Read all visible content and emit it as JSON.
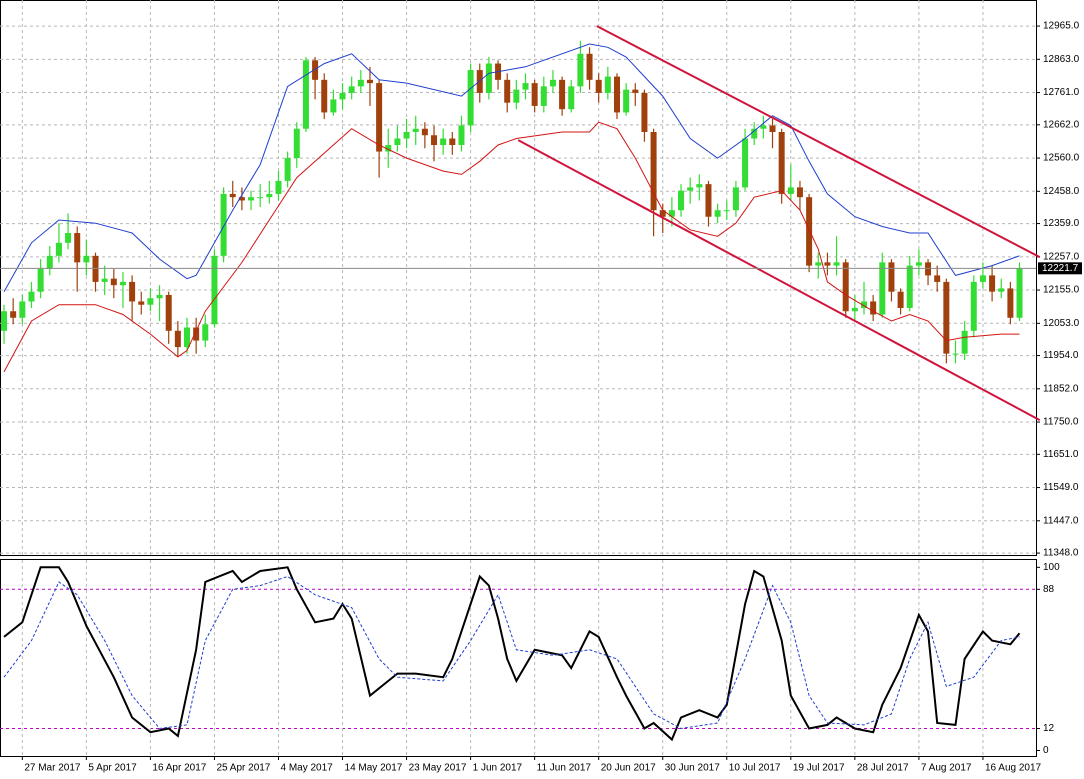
{
  "chart_data": [
    {
      "type": "candlestick",
      "xlim": [
        -0.44,
        112.8
      ],
      "ylim": [
        11339,
        13045
      ],
      "yticks": [
        {
          "value": 12965,
          "label": "12965.0"
        },
        {
          "value": 12863,
          "label": "12863.0"
        },
        {
          "value": 12761,
          "label": "12761.0"
        },
        {
          "value": 12662,
          "label": "12662.0"
        },
        {
          "value": 12560,
          "label": "12560.0"
        },
        {
          "value": 12458,
          "label": "12458.0"
        },
        {
          "value": 12359,
          "label": "12359.0"
        },
        {
          "value": 12257,
          "label": "12257.0"
        },
        {
          "value": 12155,
          "label": "12155.0"
        },
        {
          "value": 12053,
          "label": "12053.0"
        },
        {
          "value": 11954,
          "label": "11954.0"
        },
        {
          "value": 11852,
          "label": "11852.0"
        },
        {
          "value": 11750,
          "label": "11750.0"
        },
        {
          "value": 11651,
          "label": "11651.0"
        },
        {
          "value": 11549,
          "label": "11549.0"
        },
        {
          "value": 11447,
          "label": "11447.0"
        },
        {
          "value": 11348,
          "label": "11348.0"
        }
      ],
      "grid": true,
      "bull_color": "#33dd33",
      "bear_color": "#a0410d",
      "last_price": 12221.7,
      "open": [
        12030,
        12090,
        12070,
        12120,
        12150,
        12220,
        12260,
        12300,
        12330,
        12240,
        12260,
        12180,
        12190,
        12170,
        12180,
        12120,
        12110,
        12130,
        12140,
        12030,
        11980,
        12040,
        12000,
        12050,
        12260,
        12450,
        12440,
        12430,
        12440,
        12440,
        12450,
        12490,
        12560,
        12650,
        12860,
        12800,
        12700,
        12740,
        12760,
        12780,
        12800,
        12790,
        12580,
        12600,
        12620,
        12640,
        12650,
        12630,
        12600,
        12620,
        12600,
        12660,
        12830,
        12760,
        12850,
        12800,
        12730,
        12770,
        12790,
        12720,
        12780,
        12800,
        12710,
        12780,
        12880,
        12800,
        12760,
        12810,
        12700,
        12770,
        12760,
        12640,
        12400,
        12380,
        12400,
        12460,
        12470,
        12480,
        12380,
        12400,
        12400,
        12470,
        12620,
        12650,
        12660,
        12640,
        12450,
        12470,
        12440,
        12230,
        12240,
        12230,
        12240,
        12090,
        12100,
        12120,
        12080,
        12240,
        12150,
        12100,
        12230,
        12240,
        12200,
        12180,
        11960,
        11960,
        12030,
        12180,
        12200,
        12150,
        12160,
        12070
      ],
      "high": [
        12110,
        12130,
        12140,
        12180,
        12250,
        12290,
        12360,
        12390,
        12350,
        12310,
        12270,
        12230,
        12220,
        12210,
        12200,
        12150,
        12160,
        12170,
        12150,
        12060,
        12070,
        12070,
        12080,
        12280,
        12470,
        12490,
        12470,
        12460,
        12480,
        12490,
        12520,
        12580,
        12670,
        12870,
        12870,
        12820,
        12770,
        12790,
        12810,
        12830,
        12840,
        12800,
        12650,
        12660,
        12680,
        12690,
        12670,
        12660,
        12650,
        12640,
        12690,
        12850,
        12850,
        12870,
        12860,
        12820,
        12800,
        12820,
        12800,
        12810,
        12830,
        12810,
        12800,
        12920,
        12900,
        12820,
        12840,
        12820,
        12790,
        12790,
        12770,
        12650,
        12420,
        12440,
        12480,
        12500,
        12510,
        12490,
        12420,
        12430,
        12490,
        12650,
        12670,
        12690,
        12680,
        12650,
        12540,
        12490,
        12450,
        12270,
        12270,
        12320,
        12250,
        12140,
        12180,
        12140,
        12270,
        12250,
        12160,
        12260,
        12280,
        12250,
        12230,
        12190,
        12000,
        12060,
        12200,
        12240,
        12230,
        12190,
        12180,
        12240
      ],
      "low": [
        11990,
        12050,
        12050,
        12100,
        12130,
        12200,
        12240,
        12280,
        12150,
        12200,
        12150,
        12140,
        12130,
        12100,
        12060,
        12080,
        12090,
        12060,
        11990,
        11950,
        11960,
        11960,
        11980,
        12040,
        12240,
        12410,
        12400,
        12400,
        12410,
        12420,
        12430,
        12470,
        12530,
        12640,
        12740,
        12680,
        12690,
        12710,
        12740,
        12760,
        12720,
        12500,
        12530,
        12580,
        12590,
        12600,
        12590,
        12550,
        12570,
        12570,
        12580,
        12640,
        12730,
        12740,
        12770,
        12700,
        12710,
        12740,
        12700,
        12700,
        12760,
        12690,
        12700,
        12760,
        12770,
        12730,
        12740,
        12680,
        12690,
        12720,
        12610,
        12320,
        12330,
        12350,
        12380,
        12420,
        12430,
        12350,
        12360,
        12370,
        12380,
        12460,
        12600,
        12620,
        12590,
        12420,
        12430,
        12400,
        12210,
        12190,
        12200,
        12200,
        12070,
        12060,
        12080,
        12060,
        12070,
        12120,
        12080,
        12090,
        12200,
        12170,
        12150,
        11930,
        11930,
        11940,
        12010,
        12160,
        12120,
        12130,
        12050,
        12060
      ],
      "close": [
        12090,
        12070,
        12120,
        12150,
        12220,
        12260,
        12300,
        12330,
        12240,
        12260,
        12180,
        12190,
        12170,
        12180,
        12120,
        12110,
        12130,
        12140,
        12030,
        11980,
        12040,
        12000,
        12050,
        12260,
        12450,
        12440,
        12430,
        12440,
        12440,
        12450,
        12490,
        12560,
        12650,
        12860,
        12800,
        12700,
        12740,
        12760,
        12780,
        12800,
        12790,
        12580,
        12600,
        12620,
        12640,
        12650,
        12630,
        12600,
        12620,
        12600,
        12660,
        12830,
        12760,
        12850,
        12800,
        12730,
        12770,
        12790,
        12720,
        12780,
        12800,
        12710,
        12780,
        12880,
        12800,
        12760,
        12810,
        12700,
        12770,
        12760,
        12640,
        12400,
        12380,
        12400,
        12460,
        12470,
        12480,
        12380,
        12400,
        12400,
        12470,
        12620,
        12650,
        12660,
        12640,
        12450,
        12470,
        12440,
        12230,
        12240,
        12230,
        12240,
        12090,
        12100,
        12120,
        12080,
        12240,
        12150,
        12100,
        12230,
        12240,
        12200,
        12180,
        11960,
        11960,
        12030,
        12180,
        12200,
        12150,
        12160,
        12070,
        12221.7
      ],
      "bands": [
        {
          "color": "#1f3fcf",
          "x": [
            0,
            3,
            6,
            10,
            14,
            17,
            20,
            21,
            25,
            28,
            31,
            35,
            38,
            41,
            44,
            50,
            53,
            57,
            64,
            66,
            68,
            72,
            75,
            78,
            81,
            84,
            86,
            88,
            90,
            93,
            96,
            99,
            101,
            104,
            108,
            111
          ],
          "values": [
            12150,
            12300,
            12370,
            12360,
            12330,
            12250,
            12190,
            12200,
            12400,
            12540,
            12780,
            12850,
            12880,
            12800,
            12790,
            12750,
            12820,
            12840,
            12910,
            12900,
            12870,
            12750,
            12620,
            12560,
            12620,
            12690,
            12660,
            12550,
            12450,
            12380,
            12350,
            12330,
            12330,
            12200,
            12230,
            12260
          ]
        },
        {
          "color": "#d21414",
          "x": [
            0,
            3,
            6,
            10,
            13,
            16,
            19,
            20,
            22,
            26,
            29,
            32,
            36,
            38,
            41,
            44,
            48,
            50,
            52,
            54,
            56,
            61,
            64,
            65,
            67,
            69,
            72,
            75,
            78,
            80,
            82,
            85,
            87,
            89,
            90,
            92,
            95,
            97,
            99,
            101,
            103,
            105,
            109,
            111
          ],
          "values": [
            11904,
            12060,
            12110,
            12110,
            12080,
            12020,
            11950,
            11970,
            12090,
            12240,
            12370,
            12500,
            12600,
            12650,
            12600,
            12560,
            12520,
            12510,
            12550,
            12600,
            12620,
            12640,
            12640,
            12670,
            12650,
            12560,
            12400,
            12340,
            12320,
            12360,
            12440,
            12460,
            12400,
            12280,
            12180,
            12140,
            12090,
            12060,
            12080,
            12060,
            12000,
            12010,
            12020,
            12020
          ]
        }
      ],
      "trendlines": [
        {
          "color": "#d0143c",
          "x": [
            64.8,
            113.2
          ],
          "values": [
            12965,
            12256
          ]
        },
        {
          "color": "#d0143c",
          "x": [
            56.2,
            113.2
          ],
          "values": [
            12615,
            11756
          ]
        }
      ]
    },
    {
      "type": "oscillator",
      "xlim": [
        -0.44,
        112.8
      ],
      "ylim": [
        -3,
        104
      ],
      "yticks": [
        100,
        88,
        12,
        0
      ],
      "levels": [
        88,
        12
      ],
      "level_color": "#c000c0",
      "xticks": [
        {
          "value": 2,
          "label": "27 Mar 2017"
        },
        {
          "value": 9,
          "label": "5 Apr 2017"
        },
        {
          "value": 16,
          "label": "16 Apr 2017"
        },
        {
          "value": 23,
          "label": "25 Apr 2017"
        },
        {
          "value": 30,
          "label": "4 May 2017"
        },
        {
          "value": 37,
          "label": "14 May 2017"
        },
        {
          "value": 44,
          "label": "23 May 2017"
        },
        {
          "value": 51,
          "label": "1 Jun 2017"
        },
        {
          "value": 58,
          "label": "11 Jun 2017"
        },
        {
          "value": 65,
          "label": "20 Jun 2017"
        },
        {
          "value": 72,
          "label": "30 Jun 2017"
        },
        {
          "value": 79,
          "label": "10 Jul 2017"
        },
        {
          "value": 86,
          "label": "19 Jul 2017"
        },
        {
          "value": 93,
          "label": "28 Jul 2017"
        },
        {
          "value": 100,
          "label": "7 Aug 2017"
        },
        {
          "value": 107,
          "label": "16 Aug 2017"
        }
      ],
      "series": [
        {
          "color": "#000000",
          "dash": false,
          "x": [
            0,
            2,
            4,
            6,
            7,
            9,
            12,
            14,
            16,
            18,
            19,
            21,
            22,
            25,
            26,
            28,
            31,
            32,
            34,
            36,
            37,
            38,
            40,
            42,
            43,
            45,
            48,
            49,
            51,
            52,
            53,
            54,
            55,
            56,
            58,
            61,
            62,
            64,
            65,
            67,
            68,
            70,
            71,
            73,
            74,
            76,
            78,
            79,
            81,
            82,
            83,
            85,
            86,
            88,
            90,
            91,
            93,
            95,
            96,
            98,
            100,
            101,
            102,
            104,
            105,
            107,
            108,
            110,
            111
          ],
          "values": [
            62,
            70,
            100,
            100,
            92,
            68,
            40,
            18,
            10,
            12,
            8,
            55,
            92,
            98,
            92,
            98,
            100,
            88,
            70,
            72,
            80,
            72,
            30,
            38,
            42,
            42,
            40,
            50,
            80,
            95,
            90,
            72,
            50,
            38,
            55,
            52,
            45,
            65,
            62,
            40,
            30,
            12,
            15,
            6,
            18,
            22,
            18,
            25,
            80,
            98,
            95,
            60,
            30,
            12,
            14,
            18,
            12,
            10,
            25,
            45,
            74,
            65,
            15,
            14,
            50,
            65,
            60,
            58,
            64
          ]
        },
        {
          "color": "#1f3fcf",
          "dash": true,
          "x": [
            0,
            3,
            6,
            8,
            11,
            14,
            17,
            20,
            22,
            25,
            28,
            31,
            34,
            38,
            41,
            43,
            48,
            51,
            54,
            56,
            60,
            64,
            67,
            71,
            74,
            78,
            81,
            84,
            86,
            88,
            90,
            94,
            97,
            99,
            101,
            103,
            106,
            109,
            111
          ],
          "values": [
            40,
            60,
            92,
            85,
            60,
            30,
            12,
            14,
            60,
            88,
            90,
            95,
            85,
            78,
            50,
            40,
            38,
            60,
            85,
            55,
            52,
            55,
            50,
            20,
            12,
            15,
            50,
            90,
            70,
            30,
            15,
            14,
            20,
            50,
            70,
            35,
            40,
            60,
            62
          ]
        }
      ]
    }
  ]
}
